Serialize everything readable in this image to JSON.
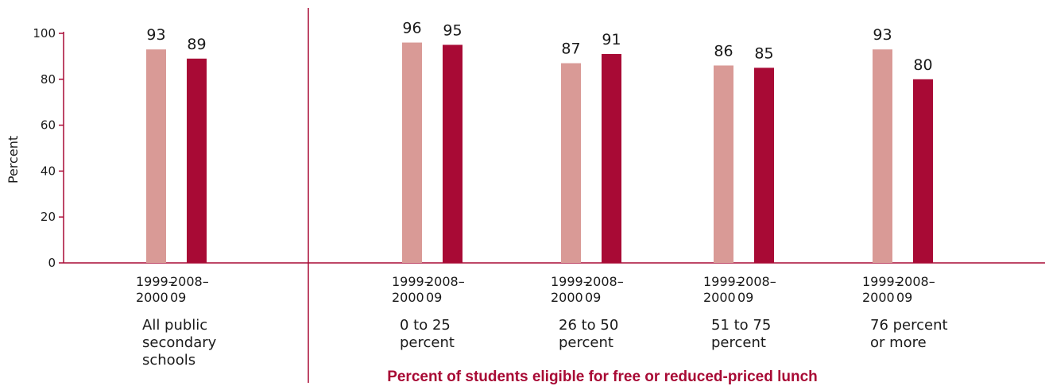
{
  "chart_data": {
    "type": "bar",
    "ylabel": "Percent",
    "xlabel": "Percent of students eligible for free or reduced-priced lunch",
    "ylim": [
      0,
      100
    ],
    "yticks": [
      0,
      20,
      40,
      60,
      80,
      100
    ],
    "series": [
      {
        "name": "1999–2000",
        "year_lines": [
          "1999–",
          "2000"
        ],
        "color": "#d99a96"
      },
      {
        "name": "2008–09",
        "year_lines": [
          "2008–",
          "09"
        ],
        "color": "#a80a35"
      }
    ],
    "categories": [
      {
        "label_lines": [
          "All public",
          "secondary",
          "schools"
        ],
        "values": [
          93,
          89
        ]
      },
      {
        "label_lines": [
          "0 to 25",
          "percent"
        ],
        "values": [
          96,
          95
        ]
      },
      {
        "label_lines": [
          "26 to 50",
          "percent"
        ],
        "values": [
          87,
          91
        ]
      },
      {
        "label_lines": [
          "51 to 75",
          "percent"
        ],
        "values": [
          86,
          85
        ]
      },
      {
        "label_lines": [
          "76 percent",
          "or more"
        ],
        "values": [
          93,
          80
        ]
      }
    ],
    "colors": {
      "axis": "#a80a35",
      "xlabel": "#a80a35"
    }
  }
}
